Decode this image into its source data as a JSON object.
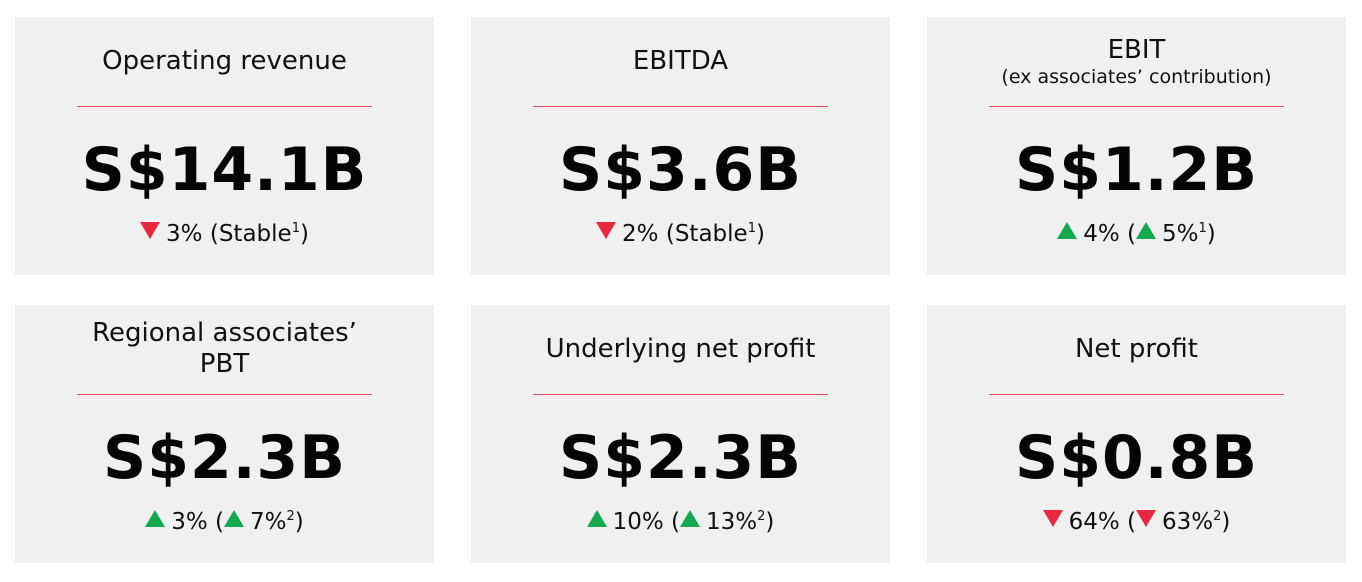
{
  "colors": {
    "card_background": "#f0f0f0",
    "divider": "#e34b5e",
    "arrow_down": "#e8283e",
    "arrow_up": "#12a94f"
  },
  "cards": [
    {
      "title": "Operating revenue",
      "subtitle": "",
      "value": "S$14.1B",
      "change_direction": "down",
      "change": "3%",
      "paren_open": " (",
      "paren_arrow": "none",
      "paren_text": "Stable",
      "footnote": "1",
      "paren_close": ")"
    },
    {
      "title": "EBITDA",
      "subtitle": "",
      "value": "S$3.6B",
      "change_direction": "down",
      "change": "2%",
      "paren_open": " (",
      "paren_arrow": "none",
      "paren_text": "Stable",
      "footnote": "1",
      "paren_close": ")"
    },
    {
      "title": "EBIT",
      "subtitle": "(ex associates’ contribution)",
      "value": "S$1.2B",
      "change_direction": "up",
      "change": "4%",
      "paren_open": " (",
      "paren_arrow": "up",
      "paren_text": "5%",
      "footnote": "1",
      "paren_close": ")"
    },
    {
      "title": "Regional associates’ PBT",
      "subtitle": "",
      "value": "S$2.3B",
      "change_direction": "up",
      "change": "3%",
      "paren_open": " (",
      "paren_arrow": "up",
      "paren_text": "7%",
      "footnote": "2",
      "paren_close": ")"
    },
    {
      "title": "Underlying net profit",
      "subtitle": "",
      "value": "S$2.3B",
      "change_direction": "up",
      "change": "10%",
      "paren_open": " (",
      "paren_arrow": "up",
      "paren_text": "13%",
      "footnote": "2",
      "paren_close": ")"
    },
    {
      "title": "Net profit",
      "subtitle": "",
      "value": "S$0.8B",
      "change_direction": "down",
      "change": "64%",
      "paren_open": " (",
      "paren_arrow": "down",
      "paren_text": "63%",
      "footnote": "2",
      "paren_close": ")"
    }
  ]
}
